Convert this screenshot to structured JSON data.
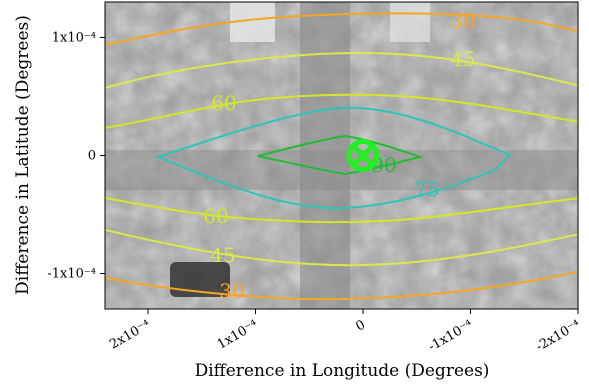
{
  "chart_data": {
    "type": "contour",
    "xlabel": "Difference in Longitude (Degrees)",
    "ylabel": "Difference in Latitude (Degrees)",
    "x_axis_reversed": true,
    "xlim": [
      0.00024,
      -0.0002
    ],
    "ylim": [
      -0.00013,
      0.00013
    ],
    "x_ticks": [
      {
        "value": 0.0002,
        "label": "2x10⁻⁴"
      },
      {
        "value": 0.0001,
        "label": "1x10⁻⁴"
      },
      {
        "value": 0,
        "label": "0"
      },
      {
        "value": -0.0001,
        "label": "-1x10⁻⁴"
      },
      {
        "value": -0.0002,
        "label": "-2x10⁻⁴"
      }
    ],
    "y_ticks": [
      {
        "value": 0.0001,
        "label": "1x10⁻⁴"
      },
      {
        "value": 0,
        "label": "0"
      },
      {
        "value": -0.0001,
        "label": "-1x10⁻⁴"
      }
    ],
    "background": "grayscale aerial image",
    "contours": [
      {
        "level": 30,
        "label": "30",
        "color": "#f5a623"
      },
      {
        "level": 45,
        "label": "45",
        "color": "#dbe84a"
      },
      {
        "level": 60,
        "label": "60",
        "color": "#d5e52a"
      },
      {
        "level": 75,
        "label": "75",
        "color": "#2ec4b6"
      },
      {
        "level": 90,
        "label": "90",
        "color": "#22bb33"
      }
    ],
    "marker": {
      "x": 0,
      "y": 0,
      "symbol": "circled-x",
      "color": "#22ee22"
    }
  }
}
